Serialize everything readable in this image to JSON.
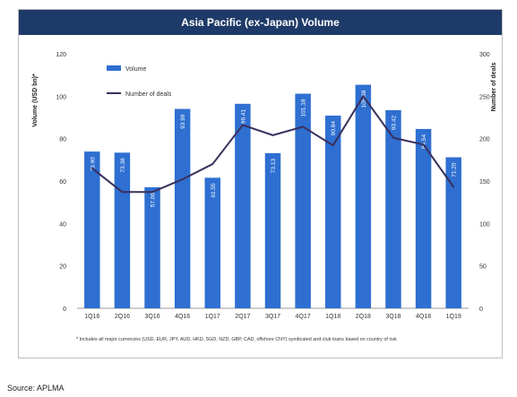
{
  "chart_data": {
    "type": "bar",
    "title": "Asia Pacific (ex-Japan) Volume",
    "categories": [
      "1Q16",
      "2Q16",
      "3Q16",
      "4Q16",
      "1Q17",
      "2Q17",
      "3Q17",
      "4Q17",
      "1Q18",
      "2Q18",
      "3Q18",
      "4Q18",
      "1Q19"
    ],
    "series": [
      {
        "name": "Volume",
        "axis": "left",
        "kind": "bar",
        "color": "#2e6fd1",
        "values": [
          73.9,
          73.38,
          57.06,
          93.99,
          61.55,
          96.41,
          73.13,
          101.18,
          90.84,
          105.38,
          93.42,
          84.54,
          71.2
        ],
        "labels": [
          "73.90",
          "73.38",
          "57.06",
          "93.99",
          "61.55",
          "96.41",
          "73.13",
          "101.18",
          "90.84",
          "105.38",
          "93.42",
          "84.54",
          "71.20"
        ]
      },
      {
        "name": "Number of deals",
        "axis": "right",
        "kind": "line",
        "color": "#3a2f5c",
        "values": [
          165,
          137,
          137,
          152,
          170,
          216,
          204,
          214,
          192,
          250,
          201,
          193,
          143
        ]
      }
    ],
    "ylabel": "Volume (USD bn)*",
    "y2label": "Number of deals",
    "ylim": [
      0,
      120
    ],
    "y2lim": [
      0,
      300
    ],
    "yticks": [
      "0",
      "20",
      "40",
      "60",
      "80",
      "100",
      "120"
    ],
    "y2ticks": [
      "0",
      "50",
      "100",
      "150",
      "200",
      "250",
      "300"
    ],
    "grid": false,
    "legend": "top-left",
    "footnote": "* Includes all major currencies (USD, EUR, JPY, AUD, HKD, SGD, NZD, GBP, CAD, offshore CNY) syndicated and club loans based on country of risk"
  },
  "source": "Source: APLMA"
}
